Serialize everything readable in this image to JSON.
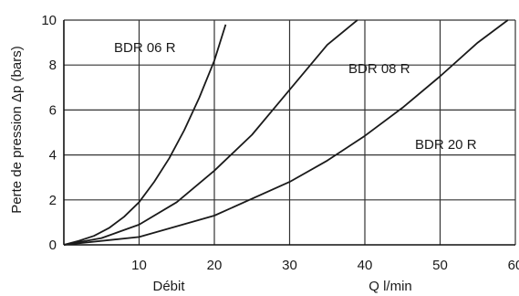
{
  "chart_data": {
    "type": "line",
    "xlabel": "Débit",
    "xunit": "Q l/min",
    "ylabel": "Perte de pression Δp (bars)",
    "xlim": [
      0,
      60
    ],
    "ylim": [
      0,
      10
    ],
    "x_ticks": [
      "10",
      "20",
      "30",
      "40",
      "50",
      "60"
    ],
    "y_ticks": [
      "0",
      "2",
      "4",
      "6",
      "8",
      "10"
    ],
    "grid": true,
    "series": [
      {
        "name": "BDR 06 R",
        "x": [
          0,
          2,
          4,
          6,
          8,
          10,
          12,
          14,
          16,
          18,
          20,
          21.5
        ],
        "y": [
          0,
          0.18,
          0.4,
          0.75,
          1.25,
          1.9,
          2.8,
          3.85,
          5.1,
          6.55,
          8.2,
          9.8
        ]
      },
      {
        "name": "BDR 08 R",
        "x": [
          0,
          5,
          10,
          15,
          20,
          25,
          30,
          35,
          39
        ],
        "y": [
          0,
          0.3,
          0.9,
          1.9,
          3.3,
          4.9,
          6.9,
          8.9,
          10
        ]
      },
      {
        "name": "BDR 20 R",
        "x": [
          0,
          10,
          20,
          30,
          35,
          40,
          45,
          50,
          55,
          59
        ],
        "y": [
          0,
          0.35,
          1.3,
          2.8,
          3.75,
          4.85,
          6.1,
          7.5,
          9.0,
          10
        ]
      }
    ]
  }
}
